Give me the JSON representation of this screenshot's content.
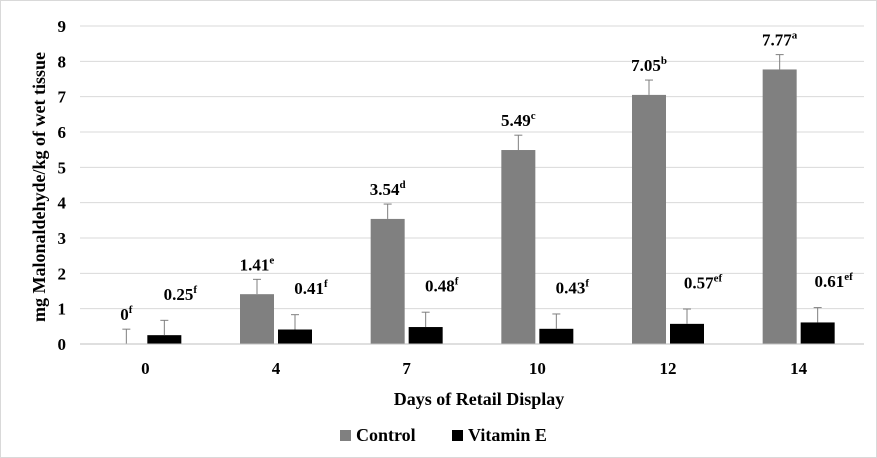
{
  "chart_data": {
    "type": "bar",
    "xlabel": "Days of Retail Display",
    "ylabel": "mg Malonaldehyde/kg of wet tissue",
    "categories": [
      "0",
      "4",
      "7",
      "10",
      "12",
      "14"
    ],
    "ylim": [
      0,
      9
    ],
    "yticks": [
      "0",
      "1",
      "2",
      "3",
      "4",
      "5",
      "6",
      "7",
      "8",
      "9"
    ],
    "grid": true,
    "legend_position": "bottom",
    "series": [
      {
        "name": "Control",
        "color": "#808080",
        "values": [
          0,
          1.41,
          3.54,
          5.49,
          7.05,
          7.77
        ],
        "errors": [
          0.42,
          0.42,
          0.42,
          0.42,
          0.42,
          0.42
        ],
        "labels": [
          "0",
          "1.41",
          "3.54",
          "5.49",
          "7.05",
          "7.77"
        ],
        "letters": [
          "f",
          "e",
          "d",
          "c",
          "b",
          "a"
        ]
      },
      {
        "name": "Vitamin E",
        "color": "#000000",
        "values": [
          0.25,
          0.41,
          0.48,
          0.43,
          0.57,
          0.61
        ],
        "errors": [
          0.42,
          0.42,
          0.42,
          0.42,
          0.42,
          0.42
        ],
        "labels": [
          "0.25",
          "0.41",
          "0.48",
          "0.43",
          "0.57",
          "0.61"
        ],
        "letters": [
          "f",
          "f",
          "f",
          "f",
          "ef",
          "ef"
        ]
      }
    ]
  }
}
